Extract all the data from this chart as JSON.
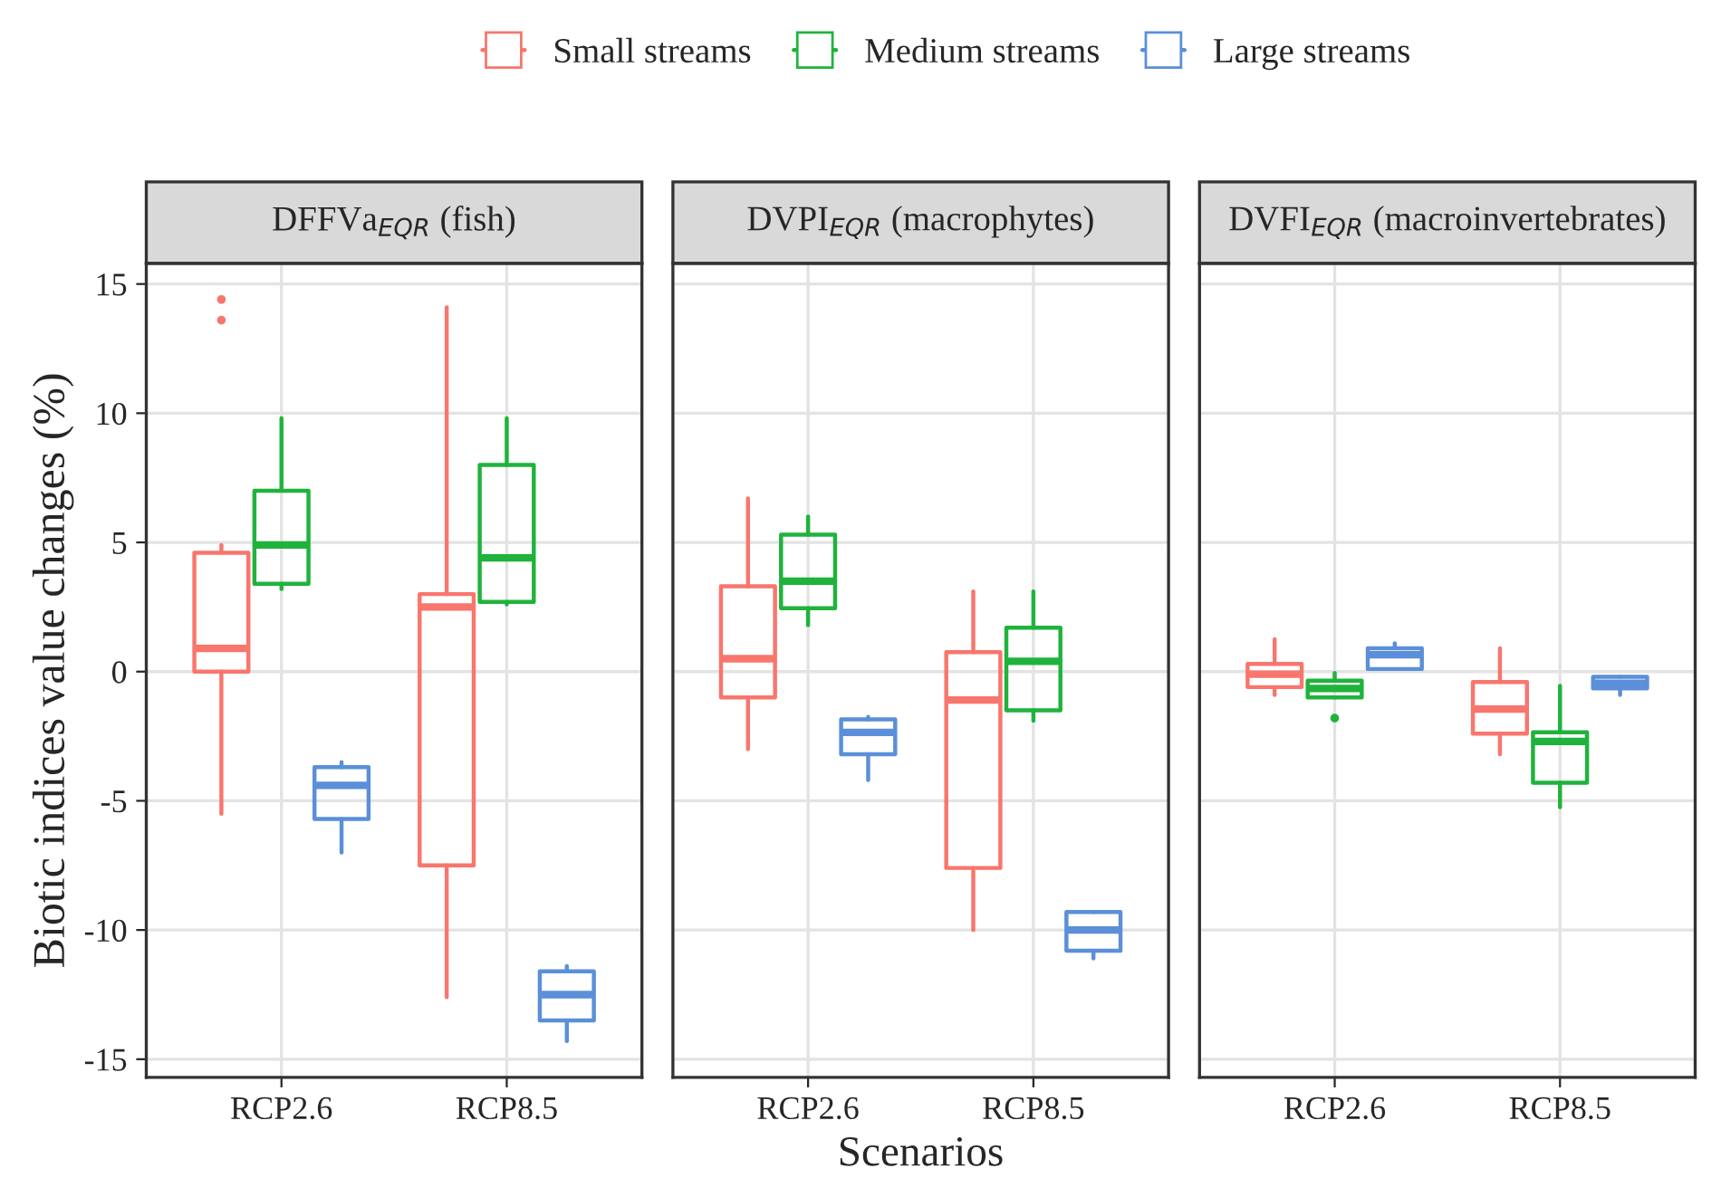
{
  "chart_data": [
    {
      "type": "box",
      "title": "DFFVa$_{EQR}$ (fish)",
      "ylabel": "Biotic indices value changes (%)",
      "categories": [
        "RCP2.6",
        "RCP8.5"
      ],
      "ylim": [
        -15.7,
        15.8
      ],
      "yticks": [
        -15,
        -10,
        -5,
        0,
        5,
        10,
        15
      ],
      "grid": true,
      "legend": "top",
      "series": [
        {
          "name": "Small streams",
          "color": "#f8766d",
          "boxes": [
            {
              "low": -5.5,
              "q1": 0,
              "median": 0.9,
              "q3": 4.6,
              "high": 4.9,
              "outliers": [
                13.6,
                14.4
              ]
            },
            {
              "low": -12.6,
              "q1": -7.5,
              "median": 2.5,
              "q3": 3.0,
              "high": 14.1
            }
          ]
        },
        {
          "name": "Medium streams",
          "color": "#1fb33c",
          "boxes": [
            {
              "low": 3.2,
              "q1": 3.4,
              "median": 4.9,
              "q3": 7.0,
              "high": 9.8
            },
            {
              "low": 2.6,
              "q1": 2.7,
              "median": 4.4,
              "q3": 8.0,
              "high": 9.8
            }
          ]
        },
        {
          "name": "Large streams",
          "color": "#5b8fd9",
          "boxes": [
            {
              "low": -7.0,
              "q1": -5.7,
              "median": -4.4,
              "q3": -3.7,
              "high": -3.5
            },
            {
              "low": -14.3,
              "q1": -13.5,
              "median": -12.5,
              "q3": -11.6,
              "high": -11.4
            }
          ]
        }
      ]
    },
    {
      "type": "box",
      "title": "DVPI$_{EQR}$ (macrophytes)",
      "xlabel": "Scenarios",
      "categories": [
        "RCP2.6",
        "RCP8.5"
      ],
      "ylim": [
        -15.7,
        15.8
      ],
      "yticks": [
        -15,
        -10,
        -5,
        0,
        5,
        10,
        15
      ],
      "grid": true,
      "tick_labels": "x",
      "series": [
        {
          "color": "#f8766d",
          "boxes": [
            {
              "low": -3.0,
              "q1": -1.0,
              "median": 0.5,
              "q3": 3.3,
              "high": 6.7
            },
            {
              "low": -10.0,
              "q1": -7.6,
              "median": -1.1,
              "q3": 0.75,
              "high": 3.1
            }
          ]
        },
        {
          "color": "#1fb33c",
          "boxes": [
            {
              "low": 1.8,
              "q1": 2.45,
              "median": 3.5,
              "q3": 5.3,
              "high": 6.0
            },
            {
              "low": -1.9,
              "q1": -1.5,
              "median": 0.4,
              "q3": 1.7,
              "high": 3.1
            }
          ]
        },
        {
          "color": "#5b8fd9",
          "boxes": [
            {
              "low": -4.2,
              "q1": -3.2,
              "median": -2.35,
              "q3": -1.85,
              "high": -1.75
            },
            {
              "low": -11.1,
              "q1": -10.8,
              "median": -10.0,
              "q3": -9.3,
              "high": -9.3
            }
          ]
        }
      ]
    },
    {
      "type": "box",
      "title": "DVFI$_{EQR}$ (macroinvertebrates)",
      "categories": [
        "RCP2.6",
        "RCP8.5"
      ],
      "ylim": [
        -15.7,
        15.8
      ],
      "yticks": [
        -15,
        -10,
        -5,
        0,
        5,
        10,
        15
      ],
      "grid": true,
      "tick_labels": "x",
      "series": [
        {
          "color": "#f8766d",
          "boxes": [
            {
              "low": -0.9,
              "q1": -0.6,
              "median": -0.1,
              "q3": 0.3,
              "high": 1.25
            },
            {
              "low": -3.2,
              "q1": -2.4,
              "median": -1.45,
              "q3": -0.4,
              "high": 0.9
            }
          ]
        },
        {
          "color": "#1fb33c",
          "boxes": [
            {
              "low": -1.0,
              "q1": -1.0,
              "median": -0.65,
              "q3": -0.35,
              "high": -0.05,
              "outliers": [
                -1.8
              ]
            },
            {
              "low": -5.25,
              "q1": -4.3,
              "median": -2.7,
              "q3": -2.35,
              "high": -0.55
            }
          ]
        },
        {
          "color": "#5b8fd9",
          "boxes": [
            {
              "low": 0.1,
              "q1": 0.1,
              "median": 0.65,
              "q3": 0.9,
              "high": 1.1
            },
            {
              "low": -0.9,
              "q1": -0.65,
              "median": -0.45,
              "q3": -0.2,
              "high": -0.2
            }
          ]
        }
      ]
    }
  ]
}
